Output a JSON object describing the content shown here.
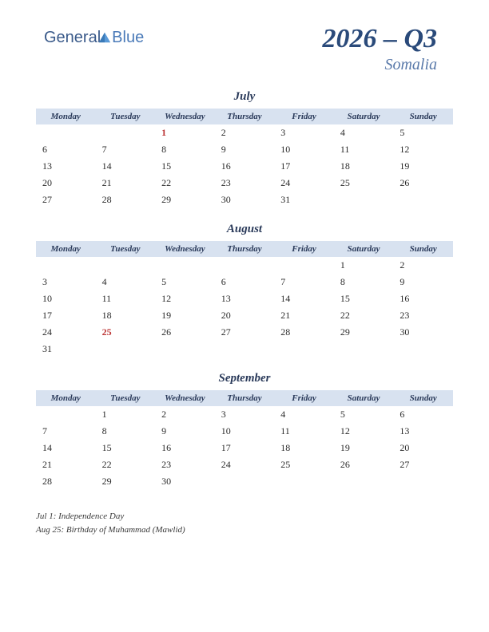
{
  "logo": {
    "text_general": "General",
    "text_blue": "Blue"
  },
  "header": {
    "year_quarter": "2026 – Q3",
    "country": "Somalia"
  },
  "day_headers": [
    "Monday",
    "Tuesday",
    "Wednesday",
    "Thursday",
    "Friday",
    "Saturday",
    "Sunday"
  ],
  "months": [
    {
      "name": "July",
      "weeks": [
        [
          "",
          "",
          "1",
          "2",
          "3",
          "4",
          "5"
        ],
        [
          "6",
          "7",
          "8",
          "9",
          "10",
          "11",
          "12"
        ],
        [
          "13",
          "14",
          "15",
          "16",
          "17",
          "18",
          "19"
        ],
        [
          "20",
          "21",
          "22",
          "23",
          "24",
          "25",
          "26"
        ],
        [
          "27",
          "28",
          "29",
          "30",
          "31",
          "",
          ""
        ]
      ],
      "holidays": [
        "1"
      ]
    },
    {
      "name": "August",
      "weeks": [
        [
          "",
          "",
          "",
          "",
          "",
          "1",
          "2"
        ],
        [
          "3",
          "4",
          "5",
          "6",
          "7",
          "8",
          "9"
        ],
        [
          "10",
          "11",
          "12",
          "13",
          "14",
          "15",
          "16"
        ],
        [
          "17",
          "18",
          "19",
          "20",
          "21",
          "22",
          "23"
        ],
        [
          "24",
          "25",
          "26",
          "27",
          "28",
          "29",
          "30"
        ],
        [
          "31",
          "",
          "",
          "",
          "",
          "",
          ""
        ]
      ],
      "holidays": [
        "25"
      ]
    },
    {
      "name": "September",
      "weeks": [
        [
          "",
          "1",
          "2",
          "3",
          "4",
          "5",
          "6"
        ],
        [
          "7",
          "8",
          "9",
          "10",
          "11",
          "12",
          "13"
        ],
        [
          "14",
          "15",
          "16",
          "17",
          "18",
          "19",
          "20"
        ],
        [
          "21",
          "22",
          "23",
          "24",
          "25",
          "26",
          "27"
        ],
        [
          "28",
          "29",
          "30",
          "",
          "",
          "",
          ""
        ]
      ],
      "holidays": []
    }
  ],
  "holiday_notes": [
    "Jul 1: Independence Day",
    "Aug 25: Birthday of Muhammad (Mawlid)"
  ],
  "colors": {
    "header_bg": "#d8e2f0",
    "title_color": "#2a4a7a",
    "country_color": "#5a7aaa",
    "holiday_color": "#bb3333",
    "text_color": "#2a2a2a"
  }
}
